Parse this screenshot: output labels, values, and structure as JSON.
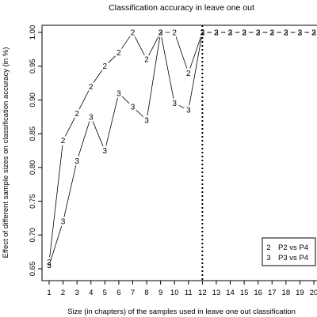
{
  "chart_data": {
    "type": "line",
    "title": "Classification accuracy in leave one out",
    "xlabel": "Size (in chapters) of the samples used in leave one out classification",
    "ylabel": "Effect of different sample sizes on classification accuracy (in %)",
    "xlim": [
      1,
      20
    ],
    "ylim": [
      0.65,
      1.0
    ],
    "x_ticks": [
      1,
      2,
      3,
      4,
      5,
      6,
      7,
      8,
      9,
      10,
      11,
      12,
      13,
      14,
      15,
      16,
      17,
      18,
      19,
      20
    ],
    "y_ticks": [
      0.65,
      0.7,
      0.75,
      0.8,
      0.85,
      0.9,
      0.95,
      1.0
    ],
    "y_tick_labels": [
      "0.65",
      "0.70",
      "0.75",
      "0.80",
      "0.85",
      "0.90",
      "0.95",
      "1.00"
    ],
    "x": [
      1,
      2,
      3,
      4,
      5,
      6,
      7,
      8,
      9,
      10,
      11,
      12,
      13,
      14,
      15,
      16,
      17,
      18,
      19,
      20
    ],
    "series": [
      {
        "name": "P2 vs P4",
        "marker": "2",
        "values": [
          0.66,
          0.84,
          0.88,
          0.92,
          0.95,
          0.97,
          1.0,
          0.96,
          1.0,
          1.0,
          0.94,
          1.0,
          1.0,
          1.0,
          1.0,
          1.0,
          1.0,
          1.0,
          1.0,
          1.0
        ]
      },
      {
        "name": "P3 vs P4",
        "marker": "3",
        "values": [
          0.655,
          0.72,
          0.81,
          0.875,
          0.825,
          0.91,
          0.89,
          0.87,
          1.0,
          0.895,
          0.885,
          1.0,
          1.0,
          1.0,
          1.0,
          1.0,
          1.0,
          1.0,
          1.0,
          1.0
        ]
      }
    ],
    "reference_line": {
      "x": 12,
      "style": "dotted"
    },
    "legend": {
      "position": "bottom-right",
      "entries": [
        {
          "marker": "2",
          "label": "P2 vs P4"
        },
        {
          "marker": "3",
          "label": "P3 vs P4"
        }
      ]
    },
    "grid": false
  }
}
